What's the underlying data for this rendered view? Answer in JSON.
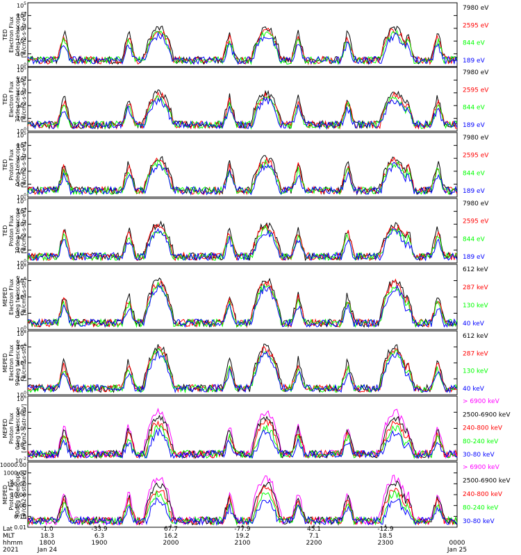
{
  "chart_data": [
    {
      "type": "line",
      "ylabel": [
        "TED",
        "Electron Flux",
        "0deg telescope",
        "[#/cm2-s-str-eV]"
      ],
      "ytick_labels": [
        "10^0",
        "10^1",
        "10^2",
        "10^3",
        "10^4",
        "10^5"
      ],
      "ylim": [
        1,
        100000
      ],
      "yscale": "log",
      "series": [
        {
          "name": "7980 eV",
          "color": "#000000"
        },
        {
          "name": "2595 eV",
          "color": "#ff0000"
        },
        {
          "name": "844 eV",
          "color": "#00ff00"
        },
        {
          "name": "189 eV",
          "color": "#0000ff"
        }
      ]
    },
    {
      "type": "line",
      "ylabel": [
        "TED",
        "Electron Flux",
        "30deg telescope",
        "[#/cm2-s-str-eV]"
      ],
      "ytick_labels": [
        "10^0",
        "10^1",
        "10^2",
        "10^3",
        "10^4",
        "10^5"
      ],
      "ylim": [
        1,
        100000
      ],
      "yscale": "log",
      "series": [
        {
          "name": "7980 eV",
          "color": "#000000"
        },
        {
          "name": "2595 eV",
          "color": "#ff0000"
        },
        {
          "name": "844 eV",
          "color": "#00ff00"
        },
        {
          "name": "189 eV",
          "color": "#0000ff"
        }
      ]
    },
    {
      "type": "line",
      "ylabel": [
        "TED",
        "Proton Flux",
        "0deg telescope",
        "[#/cm2-s-str-eV]"
      ],
      "ytick_labels": [
        "10^0",
        "10^1",
        "10^2",
        "10^3",
        "10^4",
        "10^5"
      ],
      "ylim": [
        1,
        100000
      ],
      "yscale": "log",
      "series": [
        {
          "name": "7980 eV",
          "color": "#000000"
        },
        {
          "name": "2595 eV",
          "color": "#ff0000"
        },
        {
          "name": "844 eV",
          "color": "#00ff00"
        },
        {
          "name": "189 eV",
          "color": "#0000ff"
        }
      ]
    },
    {
      "type": "line",
      "ylabel": [
        "TED",
        "Proton Flux",
        "30deg telescope",
        "[#/cm2-s-str-eV]"
      ],
      "ytick_labels": [
        "10^0",
        "10^1",
        "10^2",
        "10^3",
        "10^4",
        "10^5"
      ],
      "ylim": [
        1,
        100000
      ],
      "yscale": "log",
      "series": [
        {
          "name": "7980 eV",
          "color": "#000000"
        },
        {
          "name": "2595 eV",
          "color": "#ff0000"
        },
        {
          "name": "844 eV",
          "color": "#00ff00"
        },
        {
          "name": "189 eV",
          "color": "#0000ff"
        }
      ]
    },
    {
      "type": "line",
      "ylabel": [
        "MEPED",
        "Electron Flux",
        "0deg telescope",
        "[#/cm2-s-str]"
      ],
      "ytick_labels": [
        "10^0",
        "10^2",
        "10^4",
        "10^6",
        "10^8"
      ],
      "ylim": [
        1,
        100000000
      ],
      "yscale": "log",
      "series": [
        {
          "name": "612 keV",
          "color": "#000000"
        },
        {
          "name": "287 keV",
          "color": "#ff0000"
        },
        {
          "name": "130 keV",
          "color": "#00ff00"
        },
        {
          "name": "40 keV",
          "color": "#0000ff"
        }
      ]
    },
    {
      "type": "line",
      "ylabel": [
        "MEPED",
        "Electron Flux",
        "90deg telescope",
        "[#/cm2-s-str]"
      ],
      "ytick_labels": [
        "10^0",
        "10^2",
        "10^4",
        "10^6",
        "10^8"
      ],
      "ylim": [
        1,
        100000000
      ],
      "yscale": "log",
      "series": [
        {
          "name": "612 keV",
          "color": "#000000"
        },
        {
          "name": "287 keV",
          "color": "#ff0000"
        },
        {
          "name": "130 keV",
          "color": "#00ff00"
        },
        {
          "name": "40 keV",
          "color": "#0000ff"
        }
      ]
    },
    {
      "type": "line",
      "ylabel": [
        "MEPED",
        "Proton Flux",
        "0deg telescope",
        "[#/cm2-s-str-keV]"
      ],
      "ytick_labels": [
        "10^-2",
        "10^0",
        "10^2",
        "10^4",
        "10^6"
      ],
      "ylim": [
        0.01,
        1000000
      ],
      "yscale": "log",
      "series": [
        {
          "name": "> 6900 keV",
          "color": "#ff00ff"
        },
        {
          "name": "2500-6900 keV",
          "color": "#000000"
        },
        {
          "name": "240-800 keV",
          "color": "#ff0000"
        },
        {
          "name": "80-240 keV",
          "color": "#00ff00"
        },
        {
          "name": "30-80 keV",
          "color": "#0000ff"
        }
      ]
    },
    {
      "type": "line",
      "ylabel": [
        "MEPED",
        "Proton Flux",
        "90deg telescope",
        "[#/cm2-s-str-keV]"
      ],
      "ytick_labels": [
        "0.01",
        "0.10",
        "1.00",
        "10.00",
        "100.00",
        "1000.00",
        "10000.00"
      ],
      "ylim": [
        0.01,
        10000
      ],
      "yscale": "log",
      "series": [
        {
          "name": "> 6900 keV",
          "color": "#ff00ff"
        },
        {
          "name": "2500-6900 keV",
          "color": "#000000"
        },
        {
          "name": "240-800 keV",
          "color": "#ff0000"
        },
        {
          "name": "80-240 keV",
          "color": "#00ff00"
        },
        {
          "name": "30-80 keV",
          "color": "#0000ff"
        }
      ]
    }
  ],
  "x_axis": {
    "row_labels": [
      "Lat",
      "MLT",
      "hhmm",
      "2021"
    ],
    "columns": [
      {
        "lat": "-1.0",
        "mlt": "18.3",
        "hhmm": "1800",
        "date": "Jan 24"
      },
      {
        "lat": "-33.9",
        "mlt": "6.3",
        "hhmm": "1900",
        "date": ""
      },
      {
        "lat": "67.7",
        "mlt": "16.2",
        "hhmm": "2000",
        "date": ""
      },
      {
        "lat": "-77.9",
        "mlt": "19.2",
        "hhmm": "2100",
        "date": ""
      },
      {
        "lat": "45.1",
        "mlt": "7.1",
        "hhmm": "2200",
        "date": ""
      },
      {
        "lat": "-12.9",
        "mlt": "18.5",
        "hhmm": "2300",
        "date": ""
      },
      {
        "lat": "",
        "mlt": "",
        "hhmm": "0000",
        "date": "Jan 25"
      }
    ]
  }
}
